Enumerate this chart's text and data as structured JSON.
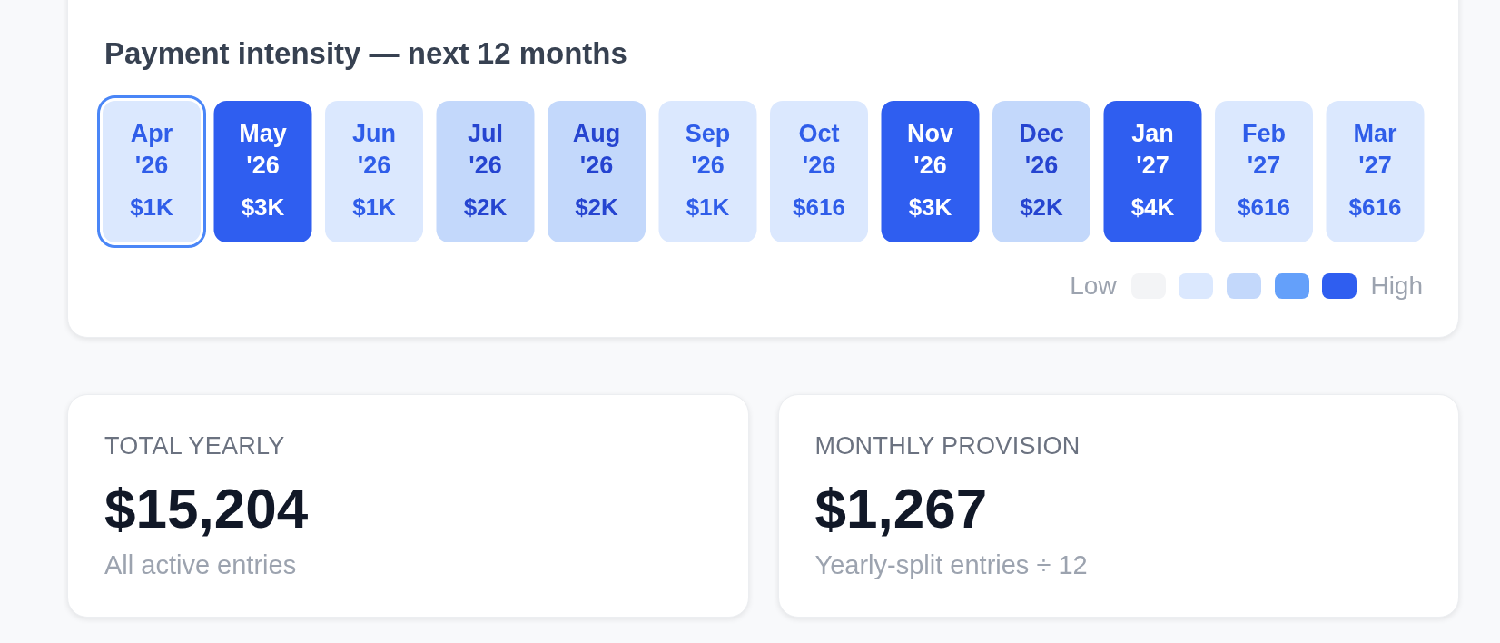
{
  "chart_data": [
    {
      "type": "heatmap",
      "title": "Payment intensity — next 12 months",
      "categories": [
        "Apr '26",
        "May '26",
        "Jun '26",
        "Jul '26",
        "Aug '26",
        "Sep '26",
        "Oct '26",
        "Nov '26",
        "Dec '26",
        "Jan '27",
        "Feb '27",
        "Mar '27"
      ],
      "y_categories": [
        null
      ],
      "cells": [
        [
          1000,
          3000,
          1000,
          2000,
          2000,
          1000,
          616,
          3000,
          2000,
          4000,
          616,
          616
        ]
      ],
      "cell_labels": [
        [
          "$1K",
          "$3K",
          "$1K",
          "$2K",
          "$2K",
          "$1K",
          "$616",
          "$3K",
          "$2K",
          "$4K",
          "$616",
          "$616"
        ]
      ],
      "annotations": [
        "Low",
        "High"
      ]
    },
    {
      "type": "other",
      "title": "TOTAL YEARLY",
      "annotations": [
        "$15,204",
        "All active entries"
      ]
    },
    {
      "type": "other",
      "title": "MONTHLY PROVISION",
      "annotations": [
        "$1,267",
        "Yearly-split entries ÷ 12"
      ]
    }
  ]
}
